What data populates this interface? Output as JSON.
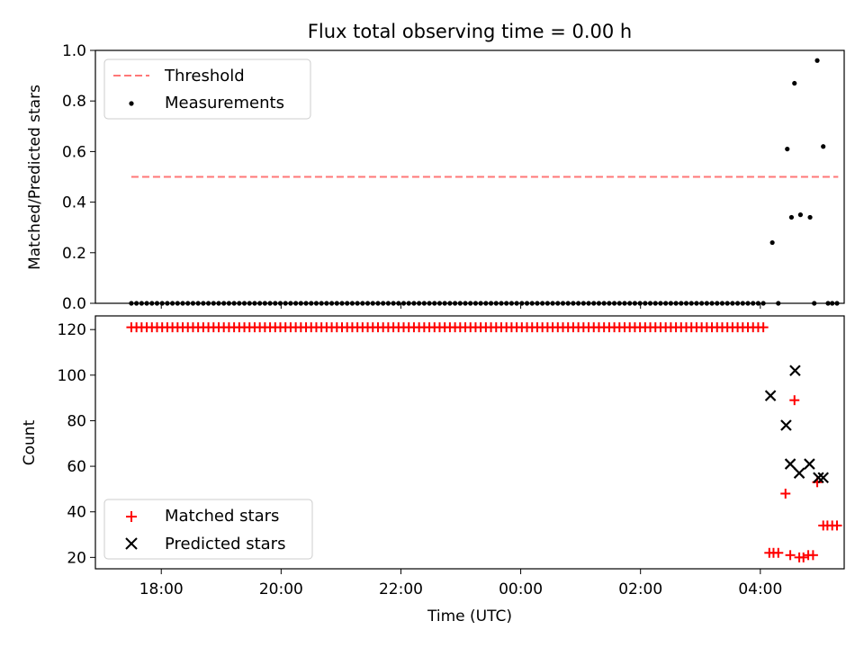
{
  "chart_data": [
    {
      "type": "scatter",
      "title": "Flux total observing time = 0.00 h",
      "xlabel": "",
      "ylabel": "Matched/Predicted stars",
      "xlim": [
        16.9,
        29.4
      ],
      "ylim": [
        0.0,
        1.0
      ],
      "yticks": [
        0.0,
        0.2,
        0.4,
        0.6,
        0.8,
        1.0
      ],
      "ytick_labels": [
        "0.0",
        "0.2",
        "0.4",
        "0.6",
        "0.8",
        "1.0"
      ],
      "legend": {
        "position": "upper-left",
        "entries": [
          "Threshold",
          "Measurements"
        ]
      },
      "threshold": {
        "name": "Threshold",
        "y": 0.5,
        "x_range": [
          17.5,
          29.3
        ],
        "color": "#ff7777"
      },
      "measurements": {
        "name": "Measurements",
        "color": "#000000",
        "zero_run": {
          "x_start": 17.5,
          "x_end": 28.05,
          "count": 124,
          "y": 0.0
        },
        "points": [
          {
            "x": 28.2,
            "y": 0.24
          },
          {
            "x": 28.3,
            "y": 0.0
          },
          {
            "x": 28.45,
            "y": 0.61
          },
          {
            "x": 28.52,
            "y": 0.34
          },
          {
            "x": 28.57,
            "y": 0.87
          },
          {
            "x": 28.67,
            "y": 0.35
          },
          {
            "x": 28.83,
            "y": 0.34
          },
          {
            "x": 28.9,
            "y": 0.0
          },
          {
            "x": 28.95,
            "y": 0.96
          },
          {
            "x": 29.05,
            "y": 0.62
          },
          {
            "x": 29.13,
            "y": 0.0
          },
          {
            "x": 29.2,
            "y": 0.0
          },
          {
            "x": 29.28,
            "y": 0.0
          }
        ]
      }
    },
    {
      "type": "scatter",
      "title": "",
      "xlabel": "Time (UTC)",
      "ylabel": "Count",
      "xlim": [
        16.9,
        29.4
      ],
      "ylim": [
        15,
        126
      ],
      "yticks": [
        20,
        40,
        60,
        80,
        100,
        120
      ],
      "ytick_labels": [
        "20",
        "40",
        "60",
        "80",
        "100",
        "120"
      ],
      "xticks": [
        18,
        20,
        22,
        24,
        26,
        28
      ],
      "xtick_labels": [
        "18:00",
        "20:00",
        "22:00",
        "00:00",
        "02:00",
        "04:00"
      ],
      "legend": {
        "position": "lower-left",
        "entries": [
          "Matched stars",
          "Predicted stars"
        ]
      },
      "matched": {
        "name": "Matched stars",
        "color": "#ff0000",
        "constant_run": {
          "x_start": 17.5,
          "x_end": 28.05,
          "count": 124,
          "y": 121
        },
        "points": [
          {
            "x": 28.15,
            "y": 22
          },
          {
            "x": 28.22,
            "y": 22
          },
          {
            "x": 28.3,
            "y": 22
          },
          {
            "x": 28.42,
            "y": 48
          },
          {
            "x": 28.5,
            "y": 21
          },
          {
            "x": 28.57,
            "y": 89
          },
          {
            "x": 28.65,
            "y": 20
          },
          {
            "x": 28.72,
            "y": 20
          },
          {
            "x": 28.8,
            "y": 21
          },
          {
            "x": 28.88,
            "y": 21
          },
          {
            "x": 28.95,
            "y": 53
          },
          {
            "x": 29.05,
            "y": 34
          },
          {
            "x": 29.12,
            "y": 34
          },
          {
            "x": 29.2,
            "y": 34
          },
          {
            "x": 29.28,
            "y": 34
          }
        ]
      },
      "predicted": {
        "name": "Predicted stars",
        "color": "#000000",
        "points": [
          {
            "x": 28.17,
            "y": 91
          },
          {
            "x": 28.43,
            "y": 78
          },
          {
            "x": 28.5,
            "y": 61
          },
          {
            "x": 28.58,
            "y": 102
          },
          {
            "x": 28.65,
            "y": 57
          },
          {
            "x": 28.82,
            "y": 61
          },
          {
            "x": 28.97,
            "y": 55
          },
          {
            "x": 29.05,
            "y": 55
          }
        ]
      }
    }
  ]
}
